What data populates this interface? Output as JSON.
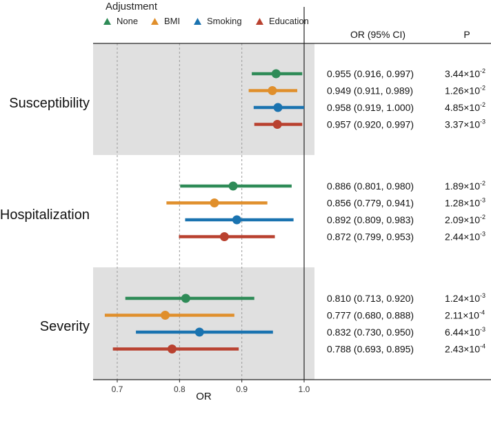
{
  "chart_data": {
    "type": "forest",
    "xlabel": "OR",
    "xlim": [
      0.665,
      1.02
    ],
    "xticks": [
      0.7,
      0.8,
      0.9,
      1.0
    ],
    "xtick_labels": [
      "0.7",
      "0.8",
      "0.9",
      "1.0"
    ],
    "reference_line": 1.0,
    "grid": "vertical dashed at 0.7, 0.8, 0.9",
    "legend": {
      "title": "Adjustment",
      "position": "top-left",
      "entries": [
        {
          "name": "None",
          "color": "#2e8b57"
        },
        {
          "name": "BMI",
          "color": "#e08f2c"
        },
        {
          "name": "Smoking",
          "color": "#1a73b0"
        },
        {
          "name": "Education",
          "color": "#b9412f"
        }
      ]
    },
    "table_headers": {
      "or": "OR (95% CI)",
      "p": "P"
    },
    "groups": [
      {
        "name": "Susceptibility",
        "shaded": true,
        "rows": [
          {
            "adjustment": "None",
            "or": 0.955,
            "lo": 0.916,
            "hi": 0.997,
            "or_text": "0.955 (0.916, 0.997)",
            "p_base": "3.44×10",
            "p_exp": "-2"
          },
          {
            "adjustment": "BMI",
            "or": 0.949,
            "lo": 0.911,
            "hi": 0.989,
            "or_text": "0.949 (0.911, 0.989)",
            "p_base": "1.26×10",
            "p_exp": "-2"
          },
          {
            "adjustment": "Smoking",
            "or": 0.958,
            "lo": 0.919,
            "hi": 1.0,
            "or_text": "0.958 (0.919, 1.000)",
            "p_base": "4.85×10",
            "p_exp": "-2"
          },
          {
            "adjustment": "Education",
            "or": 0.957,
            "lo": 0.92,
            "hi": 0.997,
            "or_text": "0.957 (0.920, 0.997)",
            "p_base": "3.37×10",
            "p_exp": "-3"
          }
        ]
      },
      {
        "name": "Hospitalization",
        "shaded": false,
        "rows": [
          {
            "adjustment": "None",
            "or": 0.886,
            "lo": 0.801,
            "hi": 0.98,
            "or_text": "0.886 (0.801, 0.980)",
            "p_base": "1.89×10",
            "p_exp": "-2"
          },
          {
            "adjustment": "BMI",
            "or": 0.856,
            "lo": 0.779,
            "hi": 0.941,
            "or_text": "0.856 (0.779, 0.941)",
            "p_base": "1.28×10",
            "p_exp": "-3"
          },
          {
            "adjustment": "Smoking",
            "or": 0.892,
            "lo": 0.809,
            "hi": 0.983,
            "or_text": "0.892 (0.809, 0.983)",
            "p_base": "2.09×10",
            "p_exp": "-2"
          },
          {
            "adjustment": "Education",
            "or": 0.872,
            "lo": 0.799,
            "hi": 0.953,
            "or_text": "0.872 (0.799, 0.953)",
            "p_base": "2.44×10",
            "p_exp": "-3"
          }
        ]
      },
      {
        "name": "Severity",
        "shaded": true,
        "rows": [
          {
            "adjustment": "None",
            "or": 0.81,
            "lo": 0.713,
            "hi": 0.92,
            "or_text": "0.810 (0.713, 0.920)",
            "p_base": "1.24×10",
            "p_exp": "-3"
          },
          {
            "adjustment": "BMI",
            "or": 0.777,
            "lo": 0.68,
            "hi": 0.888,
            "or_text": "0.777 (0.680, 0.888)",
            "p_base": "2.11×10",
            "p_exp": "-4"
          },
          {
            "adjustment": "Smoking",
            "or": 0.832,
            "lo": 0.73,
            "hi": 0.95,
            "or_text": "0.832 (0.730, 0.950)",
            "p_base": "6.44×10",
            "p_exp": "-3"
          },
          {
            "adjustment": "Education",
            "or": 0.788,
            "lo": 0.693,
            "hi": 0.895,
            "or_text": "0.788 (0.693, 0.895)",
            "p_base": "2.43×10",
            "p_exp": "-4"
          }
        ]
      }
    ]
  }
}
